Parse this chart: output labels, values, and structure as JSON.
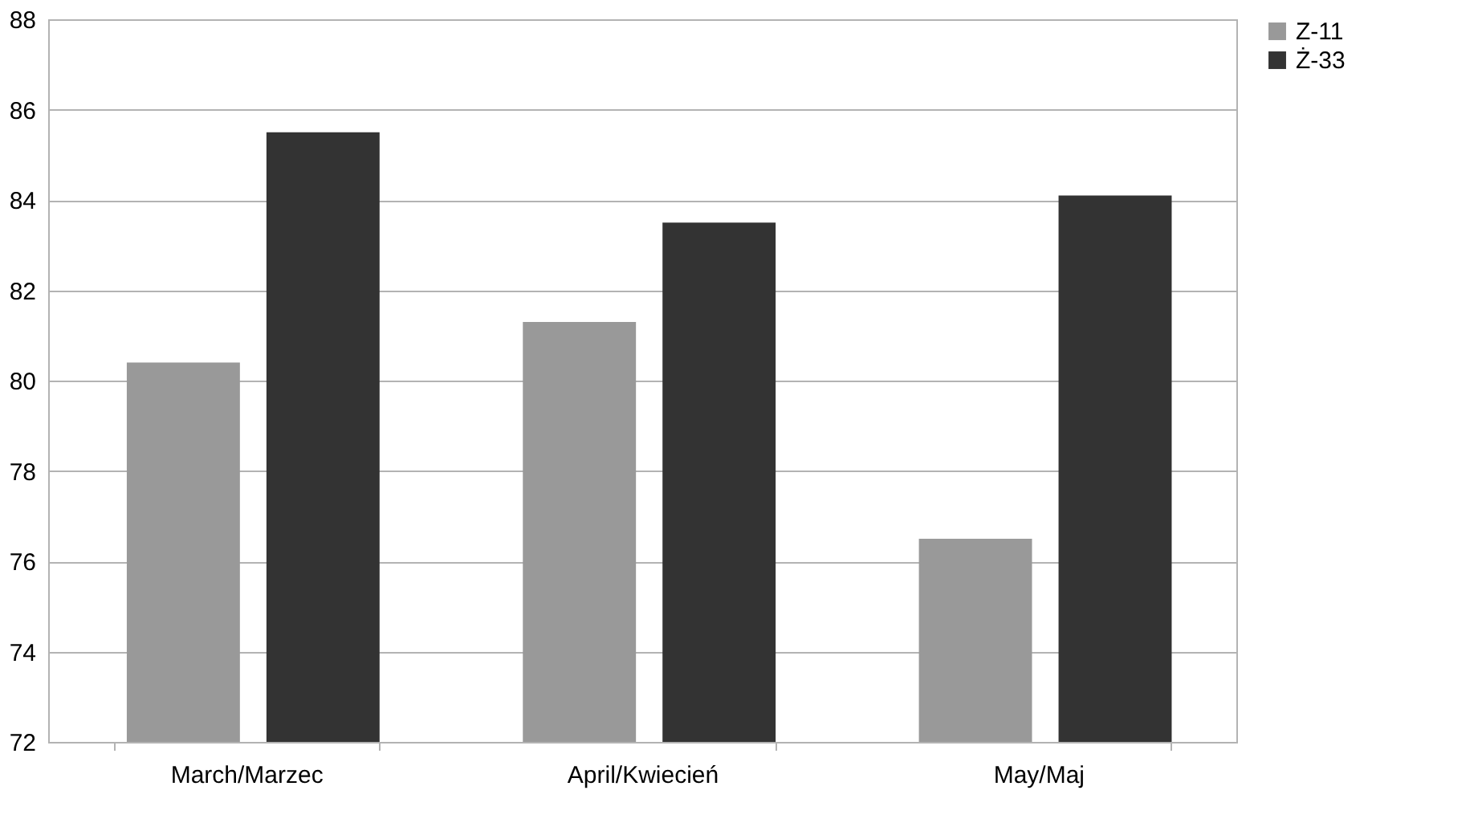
{
  "chart_data": {
    "type": "bar",
    "categories": [
      "March/Marzec",
      "April/Kwiecień",
      "May/Maj"
    ],
    "series": [
      {
        "name": "Z-11",
        "color": "#999999",
        "values": [
          80.4,
          81.3,
          76.5
        ]
      },
      {
        "name": "Ż-33",
        "color": "#333333",
        "values": [
          85.5,
          83.5,
          84.1
        ]
      }
    ],
    "ylim": [
      72,
      88
    ],
    "yticks": [
      72,
      74,
      76,
      78,
      80,
      82,
      84,
      86,
      88
    ],
    "grid": "y",
    "legend": "right"
  }
}
